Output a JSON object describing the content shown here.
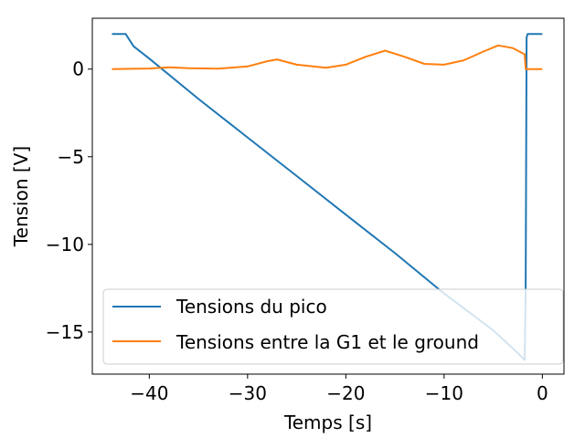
{
  "chart_data": {
    "type": "line",
    "title": "",
    "xlabel": "Temps [s]",
    "ylabel": "Tension [V]",
    "xlim": [
      -45.8,
      2.2
    ],
    "ylim": [
      -17.4,
      2.9
    ],
    "xticks": [
      -40,
      -30,
      -20,
      -10,
      0
    ],
    "xtick_labels": [
      "−40",
      "−30",
      "−20",
      "−10",
      "0"
    ],
    "yticks": [
      -15,
      -10,
      -5,
      0
    ],
    "ytick_labels": [
      "−15",
      "−10",
      "−5",
      "0"
    ],
    "grid": false,
    "legend_position": "lower-right",
    "series": [
      {
        "name": "Tensions du pico",
        "color": "#1f77b4",
        "x": [
          -43.8,
          -42.4,
          -41.6,
          -40,
          -35,
          -30,
          -25,
          -20,
          -15,
          -10,
          -5,
          -2.5,
          -1.8,
          -1.7,
          -1.6,
          -1.5,
          -1.2,
          -0.5,
          0
        ],
        "y": [
          2.0,
          2.0,
          1.3,
          0.6,
          -1.7,
          -3.9,
          -6.1,
          -8.3,
          -10.5,
          -12.8,
          -14.9,
          -16.2,
          -16.6,
          -12.5,
          1.8,
          2.0,
          2.0,
          2.0,
          2.0
        ]
      },
      {
        "name": "Tensions entre la G1 et le ground",
        "color": "#ff7f0e",
        "x": [
          -43.8,
          -40,
          -38,
          -36,
          -33,
          -30,
          -28,
          -27,
          -25,
          -22,
          -20,
          -18,
          -16,
          -14,
          -12,
          -10,
          -8,
          -6,
          -4.5,
          -3,
          -2,
          -1.8,
          -1.7,
          -1.5,
          -1,
          0
        ],
        "y": [
          0.0,
          0.03,
          0.1,
          0.05,
          0.02,
          0.15,
          0.45,
          0.55,
          0.25,
          0.08,
          0.25,
          0.7,
          1.05,
          0.7,
          0.3,
          0.25,
          0.5,
          1.0,
          1.35,
          1.2,
          0.9,
          0.85,
          0.0,
          0.0,
          0.0,
          0.0
        ]
      }
    ]
  }
}
